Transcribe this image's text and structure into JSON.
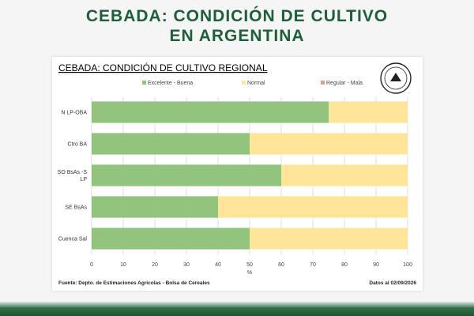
{
  "header": {
    "title_line_1": "CEBADA: CONDICIÓN DE CULTIVO",
    "title_line_2": "EN ARGENTINA"
  },
  "footer": {
    "source": "Fuente: Depto. de Estimaciones Agricolas - Bolsa de Cereales",
    "date": "Datos al 02/09/2026"
  },
  "logo": {
    "icon": "bolsa-de-cereales-seal-icon",
    "text": "Bolsa de Cereales"
  },
  "colors": {
    "title": "#1f5e3a",
    "excelente_buena": "#93c47d",
    "normal": "#ffe599",
    "regular_mala": "#ea9999",
    "grid": "#d9d9d9"
  },
  "chart_data": {
    "type": "bar",
    "orientation": "horizontal",
    "stacked": true,
    "title": "CEBADA: CONDICIÓN DE CULTIVO REGIONAL",
    "xlabel": "%",
    "ylabel": "",
    "xlim": [
      0,
      100
    ],
    "xticks": [
      0,
      10,
      20,
      30,
      40,
      50,
      60,
      70,
      80,
      90,
      100
    ],
    "grid": true,
    "legend_position": "top",
    "categories": [
      "N LP-OBA",
      "Ctro BA",
      "SO BsAs -S LP",
      "SE BsAs",
      "Cuenca Sal"
    ],
    "category_lines": [
      [
        "N LP-OBA"
      ],
      [
        "Ctro BA"
      ],
      [
        "SO BsAs -S",
        "LP"
      ],
      [
        "SE BsAs"
      ],
      [
        "Cuenca Sal"
      ]
    ],
    "series": [
      {
        "name": "Excelente - Buena",
        "color": "#93c47d",
        "values": [
          75,
          50,
          60,
          40,
          50
        ]
      },
      {
        "name": "Normal",
        "color": "#ffe599",
        "values": [
          25,
          50,
          40,
          60,
          50
        ]
      },
      {
        "name": "Regular - Mala",
        "color": "#ea9999",
        "values": [
          0,
          0,
          0,
          0,
          0
        ]
      }
    ]
  }
}
